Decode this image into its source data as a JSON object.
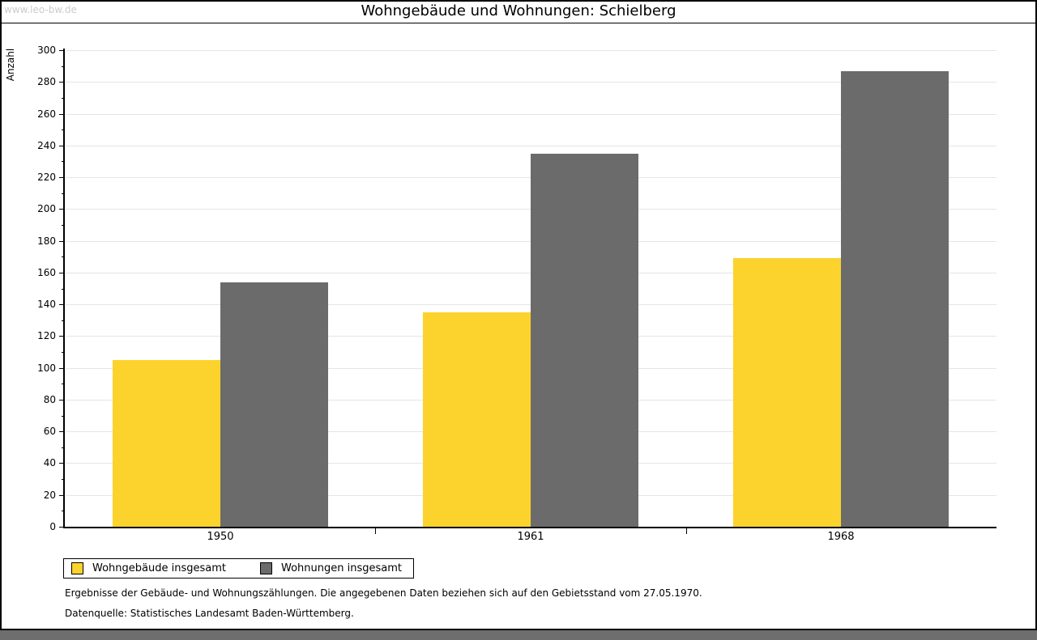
{
  "watermark": "www.leo-bw.de",
  "title": "Wohngebäude und Wohnungen: Schielberg",
  "chart_data": {
    "type": "bar",
    "title": "Wohngebäude und Wohnungen: Schielberg",
    "categories": [
      "1950",
      "1961",
      "1968"
    ],
    "series": [
      {
        "name": "Wohngebäude insgesamt",
        "color": "#FCD32C",
        "values": [
          105,
          135,
          169
        ]
      },
      {
        "name": "Wohnungen insgesamt",
        "color": "#6B6B6B",
        "values": [
          154,
          235,
          287
        ]
      }
    ],
    "xlabel": "",
    "ylabel": "Anzahl",
    "ylim": [
      0,
      300
    ],
    "ytick_step": 20,
    "yminor_step": 10,
    "grid": true,
    "legend_position": "bottom-left"
  },
  "footer": {
    "line1": "Ergebnisse der Gebäude- und Wohnungszählungen. Die angegebenen Daten beziehen sich auf den Gebietsstand vom 27.05.1970.",
    "line2": "Datenquelle: Statistisches Landesamt Baden-Württemberg."
  },
  "colors": {
    "grid": "#e5e5e5",
    "axis": "#000000",
    "watermark": "#cbcbcb",
    "bottom_strip": "#6e6e6e"
  }
}
